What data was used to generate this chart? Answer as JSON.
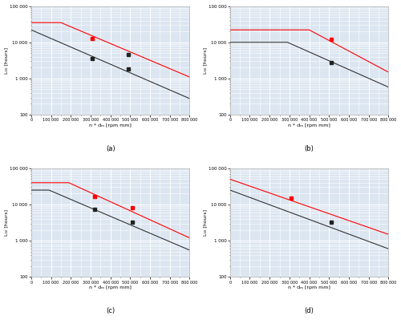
{
  "xlim": [
    0,
    800000
  ],
  "ylim_log": [
    100,
    100000
  ],
  "xlabel": "n * dₘ [rpm mm]",
  "ylabel": "L₅₀ [hours]",
  "bg_color": "#dce6f1",
  "grid_color": "#ffffff",
  "subplots": [
    {
      "label": "(a)",
      "red_line": {
        "x": [
          0,
          150000,
          800000
        ],
        "y": [
          35000,
          35000,
          1100
        ]
      },
      "black_line": {
        "x": [
          0,
          800000
        ],
        "y": [
          22000,
          280
        ]
      },
      "black_points": [
        [
          310000,
          3500
        ],
        [
          490000,
          4500
        ],
        [
          490000,
          1800
        ]
      ],
      "red_points": [
        [
          310000,
          13000
        ]
      ]
    },
    {
      "label": "(b)",
      "red_line": {
        "x": [
          0,
          400000,
          800000
        ],
        "y": [
          22000,
          22000,
          1500
        ]
      },
      "black_line": {
        "x": [
          0,
          290000,
          800000
        ],
        "y": [
          10000,
          10000,
          580
        ]
      },
      "black_points": [
        [
          510000,
          2800
        ]
      ],
      "red_points": [
        [
          510000,
          12000
        ]
      ]
    },
    {
      "label": "(c)",
      "red_line": {
        "x": [
          0,
          190000,
          800000
        ],
        "y": [
          40000,
          40000,
          1200
        ]
      },
      "black_line": {
        "x": [
          0,
          90000,
          800000
        ],
        "y": [
          25000,
          25000,
          550
        ]
      },
      "black_points": [
        [
          320000,
          7500
        ],
        [
          510000,
          3200
        ]
      ],
      "red_points": [
        [
          320000,
          17000
        ],
        [
          510000,
          8000
        ]
      ]
    },
    {
      "label": "(d)",
      "red_line": {
        "x": [
          0,
          800000
        ],
        "y": [
          50000,
          1500
        ]
      },
      "black_line": {
        "x": [
          0,
          800000
        ],
        "y": [
          25000,
          600
        ]
      },
      "black_points": [
        [
          510000,
          3200
        ]
      ],
      "red_points": [
        [
          310000,
          15000
        ]
      ]
    }
  ]
}
